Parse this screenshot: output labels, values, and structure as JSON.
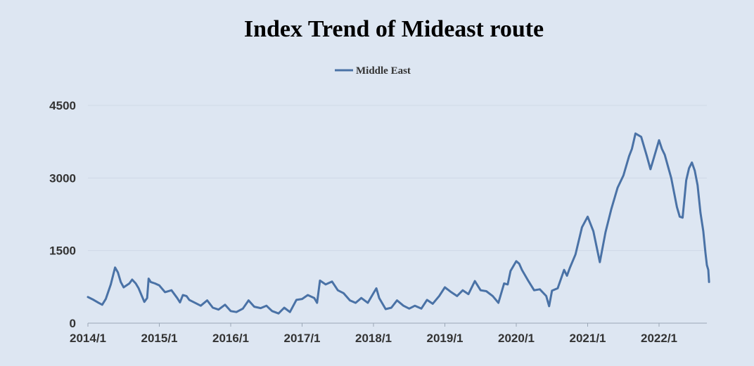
{
  "chart_data": {
    "type": "line",
    "title": "Index Trend of Mideast route",
    "xlabel": "",
    "ylabel": "",
    "ylim": [
      0,
      4500
    ],
    "yticks": [
      "0",
      "1500",
      "3000",
      "4500"
    ],
    "xticks": [
      "2014/1",
      "2015/1",
      "2016/1",
      "2017/1",
      "2018/1",
      "2019/1",
      "2020/1",
      "2021/1",
      "2022/1"
    ],
    "grid": true,
    "legend_position": "top-center",
    "series": [
      {
        "name": "Middle East",
        "color": "#4a72a6",
        "points": [
          [
            2014.0,
            540
          ],
          [
            2014.08,
            480
          ],
          [
            2014.15,
            420
          ],
          [
            2014.2,
            380
          ],
          [
            2014.25,
            500
          ],
          [
            2014.32,
            800
          ],
          [
            2014.38,
            1150
          ],
          [
            2014.42,
            1050
          ],
          [
            2014.46,
            850
          ],
          [
            2014.5,
            740
          ],
          [
            2014.58,
            820
          ],
          [
            2014.62,
            900
          ],
          [
            2014.67,
            820
          ],
          [
            2014.71,
            720
          ],
          [
            2014.75,
            580
          ],
          [
            2014.79,
            440
          ],
          [
            2014.83,
            520
          ],
          [
            2014.85,
            920
          ],
          [
            2014.88,
            850
          ],
          [
            2014.94,
            820
          ],
          [
            2015.0,
            780
          ],
          [
            2015.08,
            640
          ],
          [
            2015.17,
            680
          ],
          [
            2015.25,
            520
          ],
          [
            2015.29,
            430
          ],
          [
            2015.33,
            580
          ],
          [
            2015.38,
            560
          ],
          [
            2015.42,
            480
          ],
          [
            2015.5,
            420
          ],
          [
            2015.58,
            360
          ],
          [
            2015.67,
            470
          ],
          [
            2015.75,
            320
          ],
          [
            2015.83,
            280
          ],
          [
            2015.92,
            380
          ],
          [
            2016.0,
            250
          ],
          [
            2016.08,
            230
          ],
          [
            2016.17,
            300
          ],
          [
            2016.25,
            470
          ],
          [
            2016.33,
            340
          ],
          [
            2016.42,
            310
          ],
          [
            2016.5,
            360
          ],
          [
            2016.58,
            250
          ],
          [
            2016.67,
            200
          ],
          [
            2016.75,
            320
          ],
          [
            2016.83,
            230
          ],
          [
            2016.92,
            480
          ],
          [
            2017.0,
            500
          ],
          [
            2017.08,
            580
          ],
          [
            2017.17,
            520
          ],
          [
            2017.21,
            420
          ],
          [
            2017.25,
            880
          ],
          [
            2017.33,
            800
          ],
          [
            2017.42,
            860
          ],
          [
            2017.5,
            680
          ],
          [
            2017.58,
            620
          ],
          [
            2017.67,
            470
          ],
          [
            2017.75,
            420
          ],
          [
            2017.83,
            520
          ],
          [
            2017.92,
            420
          ],
          [
            2018.0,
            620
          ],
          [
            2018.04,
            720
          ],
          [
            2018.08,
            520
          ],
          [
            2018.17,
            290
          ],
          [
            2018.25,
            320
          ],
          [
            2018.33,
            470
          ],
          [
            2018.42,
            360
          ],
          [
            2018.5,
            300
          ],
          [
            2018.58,
            360
          ],
          [
            2018.67,
            300
          ],
          [
            2018.75,
            480
          ],
          [
            2018.83,
            400
          ],
          [
            2018.92,
            560
          ],
          [
            2019.0,
            740
          ],
          [
            2019.08,
            650
          ],
          [
            2019.17,
            560
          ],
          [
            2019.25,
            680
          ],
          [
            2019.33,
            600
          ],
          [
            2019.42,
            870
          ],
          [
            2019.5,
            680
          ],
          [
            2019.58,
            660
          ],
          [
            2019.67,
            560
          ],
          [
            2019.75,
            420
          ],
          [
            2019.83,
            820
          ],
          [
            2019.88,
            800
          ],
          [
            2019.92,
            1080
          ],
          [
            2020.0,
            1280
          ],
          [
            2020.04,
            1230
          ],
          [
            2020.08,
            1100
          ],
          [
            2020.17,
            870
          ],
          [
            2020.25,
            680
          ],
          [
            2020.33,
            700
          ],
          [
            2020.42,
            560
          ],
          [
            2020.46,
            350
          ],
          [
            2020.5,
            670
          ],
          [
            2020.58,
            720
          ],
          [
            2020.67,
            1100
          ],
          [
            2020.71,
            980
          ],
          [
            2020.75,
            1140
          ],
          [
            2020.83,
            1420
          ],
          [
            2020.92,
            1980
          ],
          [
            2021.0,
            2200
          ],
          [
            2021.08,
            1900
          ],
          [
            2021.17,
            1260
          ],
          [
            2021.25,
            1880
          ],
          [
            2021.33,
            2350
          ],
          [
            2021.42,
            2800
          ],
          [
            2021.5,
            3050
          ],
          [
            2021.58,
            3450
          ],
          [
            2021.62,
            3600
          ],
          [
            2021.67,
            3920
          ],
          [
            2021.75,
            3850
          ],
          [
            2021.83,
            3450
          ],
          [
            2021.88,
            3180
          ],
          [
            2021.92,
            3380
          ],
          [
            2022.0,
            3780
          ],
          [
            2022.04,
            3600
          ],
          [
            2022.08,
            3480
          ],
          [
            2022.17,
            3000
          ],
          [
            2022.25,
            2400
          ],
          [
            2022.29,
            2200
          ],
          [
            2022.33,
            2180
          ],
          [
            2022.38,
            2950
          ],
          [
            2022.42,
            3200
          ],
          [
            2022.46,
            3320
          ],
          [
            2022.5,
            3150
          ],
          [
            2022.54,
            2850
          ],
          [
            2022.58,
            2280
          ],
          [
            2022.62,
            1900
          ],
          [
            2022.65,
            1450
          ],
          [
            2022.67,
            1200
          ],
          [
            2022.69,
            1100
          ],
          [
            2022.7,
            850
          ]
        ]
      }
    ]
  }
}
